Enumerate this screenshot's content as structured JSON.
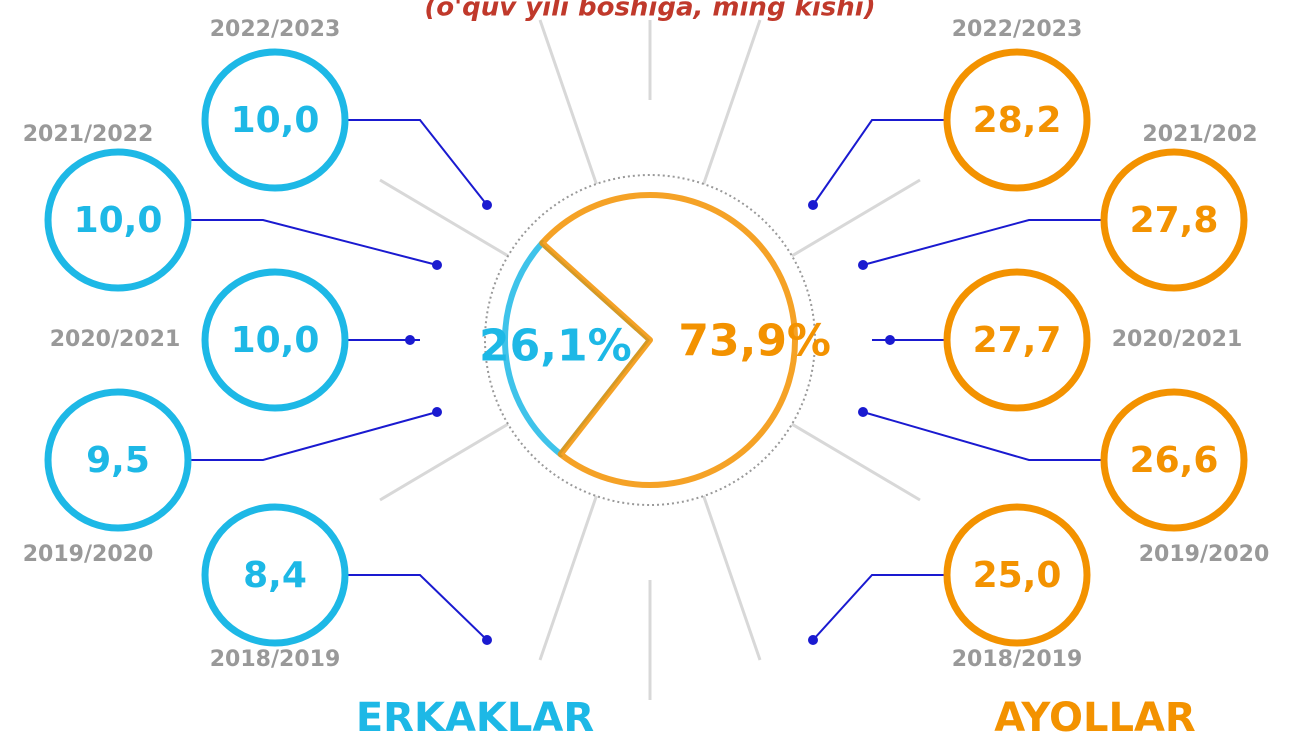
{
  "title": "(o'quv yili boshiga, ming kishi)",
  "pie": {
    "slices": [
      {
        "value": 26.1,
        "label": "26,1%",
        "color": "#1db8e6"
      },
      {
        "value": 73.9,
        "label": "73,9%",
        "color": "#f39200"
      }
    ]
  },
  "left": {
    "name": "ERKAKLAR",
    "color": "#1db8e6",
    "items": [
      {
        "year": "2022/2023",
        "value": "10,0"
      },
      {
        "year": "2021/2022",
        "value": "10,0"
      },
      {
        "year": "2020/2021",
        "value": "10,0"
      },
      {
        "year": "2019/2020",
        "value": "9,5"
      },
      {
        "year": "2018/2019",
        "value": "8,4"
      }
    ]
  },
  "right": {
    "name": "AYOLLAR",
    "color": "#f39200",
    "items": [
      {
        "year": "2022/2023",
        "value": "28,2"
      },
      {
        "year": "2021/202",
        "value": "27,8"
      },
      {
        "year": "2020/2021",
        "value": "27,7"
      },
      {
        "year": "2019/2020",
        "value": "26,6"
      },
      {
        "year": "2018/2019",
        "value": "25,0"
      }
    ]
  }
}
